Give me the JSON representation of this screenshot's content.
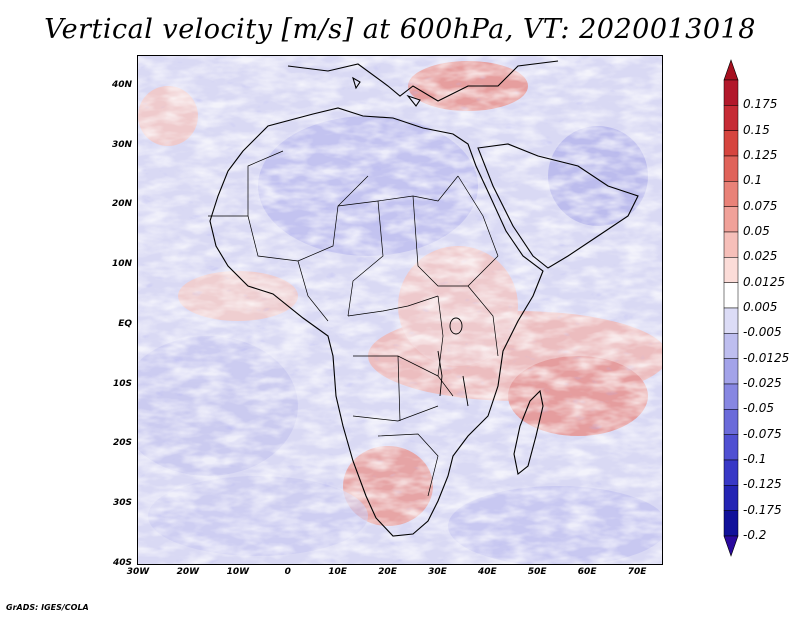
{
  "title": "Vertical velocity [m/s] at 600hPa, VT: 2020013018",
  "credit": "GrADS: IGES/COLA",
  "map": {
    "lat_labels": [
      "40N",
      "30N",
      "20N",
      "10N",
      "EQ",
      "10S",
      "20S",
      "30S",
      "40S"
    ],
    "lat_values": [
      40,
      30,
      20,
      10,
      0,
      -10,
      -20,
      -30,
      -40
    ],
    "lon_labels": [
      "30W",
      "20W",
      "10W",
      "0",
      "10E",
      "20E",
      "30E",
      "40E",
      "50E",
      "60E",
      "70E"
    ],
    "lon_values": [
      -30,
      -20,
      -10,
      0,
      10,
      20,
      30,
      40,
      50,
      60,
      70
    ],
    "lon_range": [
      -30,
      75
    ],
    "lat_range": [
      -40,
      45
    ]
  },
  "colorbar": {
    "labels": [
      "0.175",
      "0.15",
      "0.125",
      "0.1",
      "0.075",
      "0.05",
      "0.025",
      "0.0125",
      "0.005",
      "-0.005",
      "-0.0125",
      "-0.025",
      "-0.05",
      "-0.075",
      "-0.1",
      "-0.125",
      "-0.175",
      "-0.2"
    ],
    "colors": [
      "#b2182b",
      "#c62b35",
      "#d6453f",
      "#e0635a",
      "#e98278",
      "#f0a199",
      "#f6bfb9",
      "#fbdcd8",
      "#ffffff",
      "#dcdcf6",
      "#bebeef",
      "#a3a3e9",
      "#8787e2",
      "#6b6bda",
      "#5050d2",
      "#3838c6",
      "#2424b4",
      "#11119a"
    ],
    "top_arrow_color": "#a6101f",
    "bottom_arrow_color": "#2a0a9e"
  }
}
